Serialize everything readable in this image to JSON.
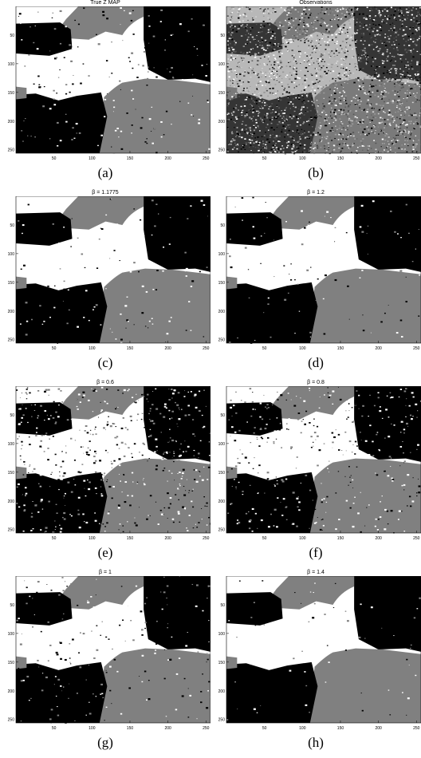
{
  "figure": {
    "axes": {
      "x_ticks": [
        "50",
        "100",
        "150",
        "200",
        "250"
      ],
      "y_ticks": [
        "50",
        "100",
        "150",
        "200",
        "250"
      ]
    },
    "colors": {
      "region_white": "#ffffff",
      "region_gray": "#808080",
      "region_black": "#000000",
      "axis": "#000000"
    },
    "panels": [
      {
        "title": "True Z MAP",
        "caption": "(a)",
        "style": "map",
        "noise": 0.1
      },
      {
        "title": "Observations",
        "caption": "(b)",
        "style": "obs",
        "noise": 0.0
      },
      {
        "title": "β = 1.1775",
        "caption": "(c)",
        "style": "map",
        "noise": 0.06
      },
      {
        "title": "β = 1.2",
        "caption": "(d)",
        "style": "map",
        "noise": 0.05
      },
      {
        "title": "β = 0.6",
        "caption": "(e)",
        "style": "map",
        "noise": 0.3
      },
      {
        "title": "β = 0.8",
        "caption": "(f)",
        "style": "map",
        "noise": 0.2
      },
      {
        "title": "β = 1",
        "caption": "(g)",
        "style": "map",
        "noise": 0.1
      },
      {
        "title": "β = 1.4",
        "caption": "(h)",
        "style": "map",
        "noise": 0.03
      }
    ]
  }
}
